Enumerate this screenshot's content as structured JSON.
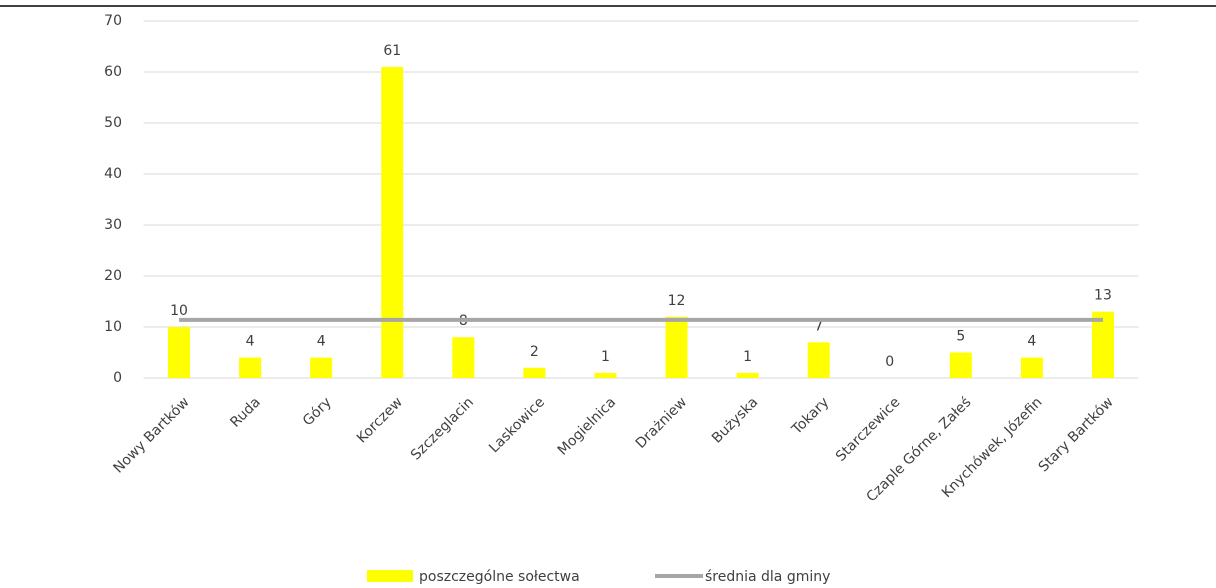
{
  "chart_data": {
    "type": "bar",
    "categories": [
      "Nowy Bartków",
      "Ruda",
      "Góry",
      "Korczew",
      "Szczeglacin",
      "Laskowice",
      "Mogielnica",
      "Drażniew",
      "Bużyska",
      "Tokary",
      "Starczewice",
      "Czaple Górne, Załeś",
      "Knychówek, Józefin",
      "Stary Bartków"
    ],
    "series": [
      {
        "name": "poszczególne sołectwa",
        "color": "#ffff00",
        "values": [
          10,
          4,
          4,
          61,
          8,
          2,
          1,
          12,
          1,
          7,
          0,
          5,
          4,
          13
        ]
      },
      {
        "name": "średnia dla gminy",
        "color": "#a6a6a6",
        "type": "line",
        "values": [
          11.4,
          11.4,
          11.4,
          11.4,
          11.4,
          11.4,
          11.4,
          11.4,
          11.4,
          11.4,
          11.4,
          11.4,
          11.4,
          11.4
        ]
      }
    ],
    "ylim": [
      0,
      70
    ],
    "yticks": [
      0,
      10,
      20,
      30,
      40,
      50,
      60,
      70
    ],
    "grid": true,
    "legend": "bottom"
  }
}
